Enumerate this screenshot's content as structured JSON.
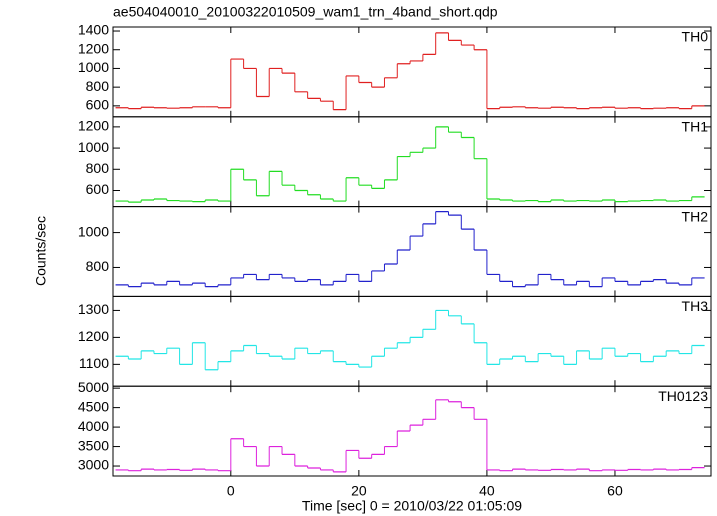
{
  "chart_data": {
    "type": "line",
    "title": "ae504040010_20100322010509_wam1_trn_4band_short.qdp",
    "x_label": "Time [sec] 0 = 2010/03/22 01:05:09",
    "y_label": "Counts/sec",
    "xlim": [
      -18.4,
      75
    ],
    "xticks": [
      0,
      20,
      40,
      60
    ],
    "x": [
      -17,
      -15,
      -13,
      -11,
      -9,
      -7,
      -5,
      -3,
      -1,
      1,
      3,
      5,
      7,
      9,
      11,
      13,
      15,
      17,
      19,
      21,
      23,
      25,
      27,
      29,
      31,
      33,
      35,
      37,
      39,
      41,
      43,
      45,
      47,
      49,
      51,
      53,
      55,
      57,
      59,
      61,
      63,
      65,
      67,
      69,
      71,
      73
    ],
    "series": [
      {
        "name": "TH0",
        "color": "#e02020",
        "ylim": [
          483,
          1443
        ],
        "yticks": [
          600,
          800,
          1000,
          1200,
          1400
        ],
        "values": [
          580,
          570,
          585,
          580,
          575,
          580,
          590,
          590,
          580,
          1100,
          1000,
          700,
          1000,
          950,
          750,
          680,
          650,
          560,
          920,
          850,
          800,
          900,
          1050,
          1080,
          1150,
          1380,
          1300,
          1250,
          1200,
          570,
          585,
          590,
          580,
          575,
          585,
          580,
          570,
          580,
          585,
          575,
          580,
          570,
          575,
          580,
          570,
          600
        ]
      },
      {
        "name": "TH1",
        "color": "#22dd22",
        "ylim": [
          448,
          1295
        ],
        "yticks": [
          600,
          800,
          1000,
          1200
        ],
        "values": [
          500,
          490,
          510,
          520,
          505,
          500,
          495,
          510,
          500,
          800,
          700,
          550,
          780,
          650,
          600,
          560,
          520,
          500,
          720,
          650,
          620,
          700,
          920,
          960,
          1000,
          1200,
          1150,
          1100,
          900,
          520,
          510,
          500,
          505,
          495,
          510,
          500,
          505,
          500,
          510,
          495,
          500,
          505,
          510,
          500,
          505,
          540
        ]
      },
      {
        "name": "TH2",
        "color": "#2222cc",
        "ylim": [
          634,
          1149
        ],
        "yticks": [
          800,
          1000
        ],
        "values": [
          700,
          690,
          710,
          700,
          720,
          700,
          710,
          690,
          700,
          740,
          760,
          730,
          760,
          740,
          720,
          730,
          700,
          720,
          760,
          720,
          780,
          820,
          900,
          980,
          1050,
          1120,
          1100,
          1020,
          900,
          760,
          720,
          690,
          700,
          760,
          730,
          700,
          720,
          690,
          740,
          720,
          700,
          720,
          730,
          710,
          700,
          740
        ]
      },
      {
        "name": "TH3",
        "color": "#22e6e6",
        "ylim": [
          1019,
          1352
        ],
        "yticks": [
          1100,
          1200,
          1300
        ],
        "values": [
          1130,
          1120,
          1150,
          1140,
          1160,
          1100,
          1180,
          1080,
          1110,
          1150,
          1170,
          1140,
          1130,
          1120,
          1160,
          1140,
          1150,
          1110,
          1100,
          1090,
          1130,
          1160,
          1180,
          1200,
          1230,
          1300,
          1280,
          1250,
          1180,
          1100,
          1120,
          1130,
          1110,
          1140,
          1130,
          1100,
          1150,
          1120,
          1160,
          1130,
          1140,
          1110,
          1130,
          1150,
          1140,
          1170
        ]
      },
      {
        "name": "TH0123",
        "color": "#dd22dd",
        "ylim": [
          2744,
          5050
        ],
        "yticks": [
          3000,
          3500,
          4000,
          4500,
          5000
        ],
        "values": [
          2900,
          2880,
          2920,
          2900,
          2910,
          2890,
          2920,
          2900,
          2880,
          3700,
          3500,
          3000,
          3500,
          3300,
          3000,
          2950,
          2900,
          2850,
          3400,
          3200,
          3300,
          3500,
          3900,
          4050,
          4200,
          4700,
          4650,
          4500,
          4200,
          2900,
          2880,
          2920,
          2900,
          2890,
          2910,
          2900,
          2920,
          2880,
          2900,
          2890,
          2910,
          2900,
          2920,
          2900,
          2910,
          2960
        ]
      }
    ]
  }
}
